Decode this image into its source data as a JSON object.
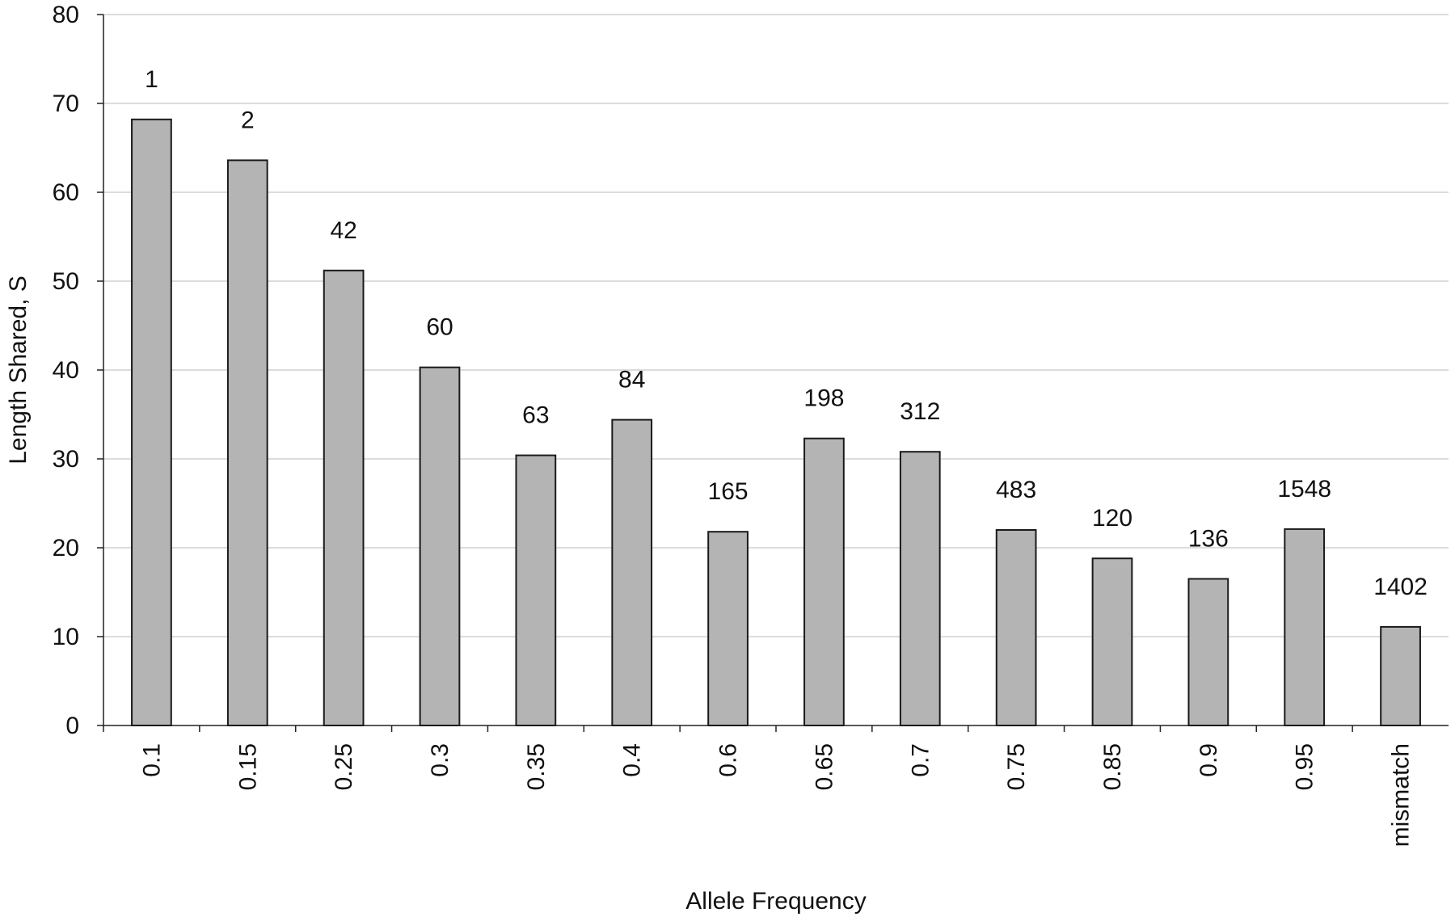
{
  "chart_data": {
    "type": "bar",
    "xlabel": "Allele Frequency",
    "ylabel": "Length Shared, S",
    "ylim": [
      0,
      80
    ],
    "yticks": [
      0,
      10,
      20,
      30,
      40,
      50,
      60,
      70,
      80
    ],
    "grid": true,
    "categories": [
      "0.1",
      "0.15",
      "0.25",
      "0.3",
      "0.35",
      "0.4",
      "0.6",
      "0.65",
      "0.7",
      "0.75",
      "0.85",
      "0.9",
      "0.95",
      "mismatch"
    ],
    "values": [
      68.2,
      63.6,
      51.2,
      40.3,
      30.4,
      34.4,
      21.8,
      32.3,
      30.8,
      22.0,
      18.8,
      16.5,
      22.1,
      11.1
    ],
    "bar_labels": [
      "1",
      "2",
      "42",
      "60",
      "63",
      "84",
      "165",
      "198",
      "312",
      "483",
      "120",
      "136",
      "1548",
      "1402"
    ],
    "bar_color": "#b4b4b4"
  }
}
